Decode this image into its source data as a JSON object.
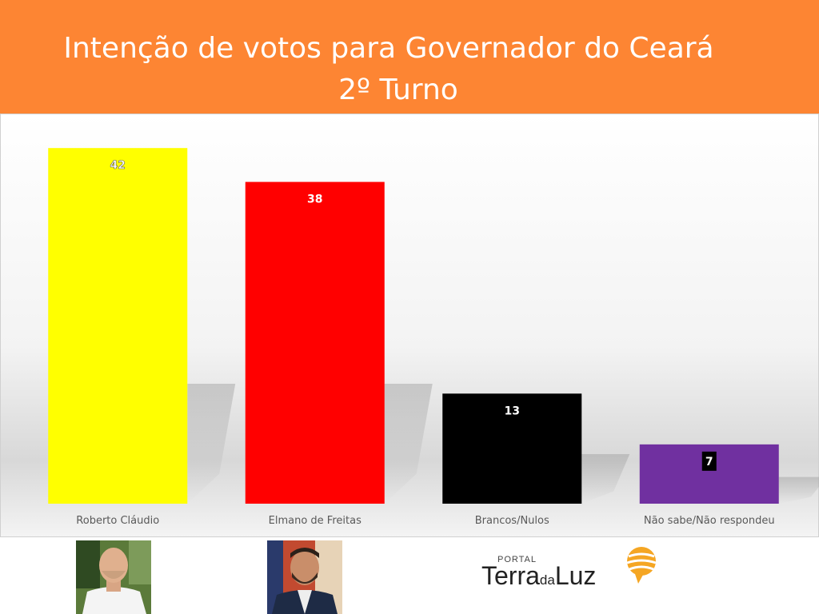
{
  "header": {
    "title": "Intenção de votos para Governador do Ceará",
    "subtitle": "2º Turno",
    "background": "#fd8533"
  },
  "chart_data": {
    "type": "bar",
    "categories": [
      "Roberto Cláudio",
      "Elmano de Freitas",
      "Brancos/Nulos",
      "Não sabe/Não respondeu"
    ],
    "values": [
      42,
      38,
      13,
      7
    ],
    "colors": [
      "#ffff00",
      "#ff0000",
      "#000000",
      "#7030a0"
    ],
    "title": "Intenção de votos para Governador do Ceará",
    "subtitle": "2º Turno",
    "xlabel": "",
    "ylabel": "",
    "ylim": [
      0,
      44
    ],
    "grid": false,
    "legend": "none"
  },
  "footer": {
    "logo": {
      "portal": "PORTAL",
      "terra": "Terra",
      "da": "da",
      "luz": "Luz"
    }
  }
}
